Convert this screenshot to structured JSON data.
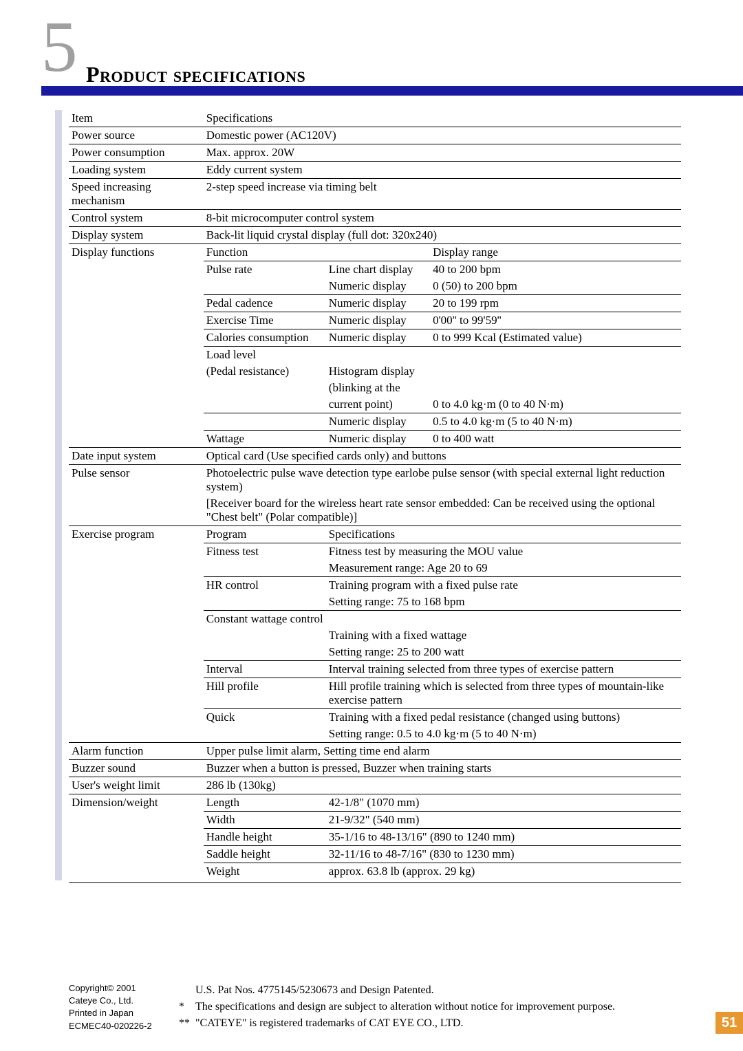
{
  "chapter_number": "5",
  "title": "Product specifications",
  "colors": {
    "blue_bar": "#1a1a9e",
    "page_num_bg": "#e89830",
    "side_bar": "#d5d5e8"
  },
  "spec_table": {
    "header": [
      "Item",
      "Specifications"
    ],
    "rows": [
      {
        "item": "Power source",
        "spec": "Domestic power (AC120V)"
      },
      {
        "item": "Power consumption",
        "spec": "Max. approx. 20W"
      },
      {
        "item": "Loading system",
        "spec": "Eddy current system"
      },
      {
        "item": "Speed increasing mechanism",
        "spec": "2-step speed increase via timing belt"
      },
      {
        "item": "Control system",
        "spec": "8-bit microcomputer control system"
      },
      {
        "item": "Display system",
        "spec": "Back-lit liquid crystal display (full dot: 320x240)"
      }
    ],
    "display_functions": {
      "item": "Display functions",
      "header": [
        "Function",
        "",
        "Display range"
      ],
      "rows": [
        [
          "Pulse rate",
          "Line chart display",
          "40 to 200 bpm"
        ],
        [
          "",
          "Numeric display",
          "0 (50) to 200 bpm"
        ],
        [
          "Pedal cadence",
          "Numeric display",
          "20 to 199 rpm"
        ],
        [
          "Exercise Time",
          "Numeric display",
          "0'00'' to 99'59''"
        ],
        [
          "Calories consumption",
          "Numeric display",
          "0 to 999 Kcal (Estimated value)"
        ],
        [
          "Load level",
          "",
          ""
        ],
        [
          "(Pedal resistance)",
          "Histogram display",
          ""
        ],
        [
          "",
          "(blinking at the",
          ""
        ],
        [
          "",
          "current point)",
          "0 to 4.0 kg·m (0 to 40 N·m)"
        ],
        [
          "",
          "Numeric display",
          "0.5 to 4.0 kg·m (5 to 40 N·m)"
        ],
        [
          "Wattage",
          "Numeric display",
          "0 to 400 watt"
        ]
      ]
    },
    "rows2": [
      {
        "item": "Date input system",
        "spec": "Optical card (Use specified cards only) and buttons"
      },
      {
        "item": "Pulse sensor",
        "spec": "Photoelectric pulse wave detection type earlobe pulse sensor (with special external light reduction system)\n[Receiver board for the wireless heart rate sensor embedded: Can be received using the optional \"Chest belt\" (Polar compatible)]"
      }
    ],
    "exercise_program": {
      "item": "Exercise program",
      "header": [
        "Program",
        "Specifications"
      ],
      "rows": [
        [
          "Fitness test",
          "Fitness test by measuring the MOU value"
        ],
        [
          "",
          "Measurement range:  Age 20 to 69"
        ],
        [
          "HR control",
          "Training program with a fixed pulse rate"
        ],
        [
          "",
          "Setting range: 75 to 168 bpm"
        ],
        [
          "Constant wattage control",
          ""
        ],
        [
          "",
          "Training with a fixed wattage"
        ],
        [
          "",
          "Setting range: 25 to 200 watt"
        ],
        [
          "Interval",
          "Interval training selected from three types of exercise pattern"
        ],
        [
          "Hill profile",
          "Hill profile training which is selected from three types of mountain-like exercise pattern"
        ],
        [
          "Quick",
          "Training with a fixed pedal resistance (changed using buttons)"
        ],
        [
          "",
          "Setting range: 0.5 to 4.0 kg·m (5 to 40 N·m)"
        ]
      ]
    },
    "rows3": [
      {
        "item": "Alarm function",
        "spec": "Upper pulse limit alarm, Setting time end alarm"
      },
      {
        "item": "Buzzer sound",
        "spec": "Buzzer when a button is pressed, Buzzer when training starts"
      },
      {
        "item": "User's weight limit",
        "spec": "286 lb (130kg)"
      }
    ],
    "dimension": {
      "item": "Dimension/weight",
      "rows": [
        [
          "Length",
          "42-1/8\" (1070 mm)"
        ],
        [
          "Width",
          "21-9/32\" (540 mm)"
        ],
        [
          "Handle height",
          "35-1/16 to 48-13/16\" (890 to 1240 mm)"
        ],
        [
          "Saddle height",
          "32-11/16 to 48-7/16\" (830 to 1230 mm)"
        ],
        [
          "Weight",
          "approx. 63.8 lb (approx. 29 kg)"
        ]
      ]
    }
  },
  "copyright": {
    "l1": "Copyright© 2001",
    "l2": "Cateye Co., Ltd.",
    "l3": "Printed in Japan",
    "l4": "ECMEC40-020226-2"
  },
  "footnotes": {
    "l0": "U.S. Pat Nos. 4775145/5230673 and Design Patented.",
    "l1_mark": "*",
    "l1": "The specifications and design are subject to alteration without notice for improvement purpose.",
    "l2_mark": "**",
    "l2": "\"CATEYE\" is registered trademarks of CAT EYE CO., LTD."
  },
  "page_number": "51"
}
